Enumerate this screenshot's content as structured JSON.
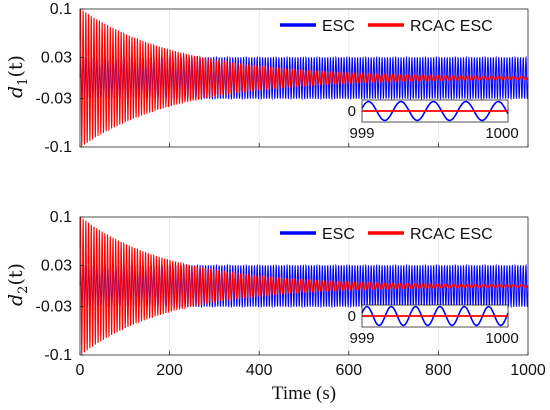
{
  "chart_data": [
    {
      "type": "line",
      "ylabel": "d_1(t)",
      "ylabel_main": "d",
      "ylabel_sub": "1",
      "ylabel_rest": "(t)",
      "xlim": [
        0,
        1000
      ],
      "ylim": [
        -0.1,
        0.1
      ],
      "xticks": [
        0,
        200,
        400,
        600,
        800,
        1000
      ],
      "yticks": [
        -0.1,
        -0.03,
        0.03,
        0.1
      ],
      "ytick_labels": [
        "-0.1",
        "-0.03",
        "0.03",
        "0.1"
      ],
      "grid": true,
      "legend_position": "top-right",
      "series": [
        {
          "name": "ESC",
          "color": "#0000ff",
          "description_values": {
            "amplitude_start": 0.03,
            "amplitude_end": 0.03,
            "form": "sustained oscillation"
          }
        },
        {
          "name": "RCAC ESC",
          "color": "#ff0000",
          "description_values": {
            "amplitude_start": 0.1,
            "amplitude_end": 0.0,
            "form": "decaying oscillation",
            "decay_time_constant": 220
          }
        }
      ],
      "inset": {
        "xlim": [
          999,
          1000
        ],
        "xtick_labels": [
          "999",
          "1000"
        ],
        "ytick_labels": [
          "0"
        ],
        "esc_cycles": 4.5,
        "esc_amplitude": 0.03,
        "rcac_value": 0
      }
    },
    {
      "type": "line",
      "ylabel": "d_2(t)",
      "ylabel_main": "d",
      "ylabel_sub": "2",
      "ylabel_rest": "(t)",
      "xlabel": "Time (s)",
      "xlim": [
        0,
        1000
      ],
      "ylim": [
        -0.1,
        0.1
      ],
      "xticks": [
        0,
        200,
        400,
        600,
        800,
        1000
      ],
      "xtick_labels": [
        "0",
        "200",
        "400",
        "600",
        "800",
        "1000"
      ],
      "yticks": [
        -0.1,
        -0.03,
        0.03,
        0.1
      ],
      "ytick_labels": [
        "-0.1",
        "-0.03",
        "0.03",
        "0.1"
      ],
      "grid": true,
      "legend_position": "top-right",
      "series": [
        {
          "name": "ESC",
          "color": "#0000ff",
          "description_values": {
            "amplitude_start": 0.03,
            "amplitude_end": 0.03,
            "form": "sustained oscillation"
          }
        },
        {
          "name": "RCAC ESC",
          "color": "#ff0000",
          "description_values": {
            "amplitude_start": 0.1,
            "amplitude_end": 0.0,
            "form": "decaying oscillation",
            "decay_time_constant": 200
          }
        }
      ],
      "inset": {
        "xlim": [
          999,
          1000
        ],
        "xtick_labels": [
          "999",
          "1000"
        ],
        "ytick_labels": [
          "0"
        ],
        "esc_cycles": 6,
        "esc_amplitude": 0.03,
        "rcac_value": 0
      }
    }
  ]
}
